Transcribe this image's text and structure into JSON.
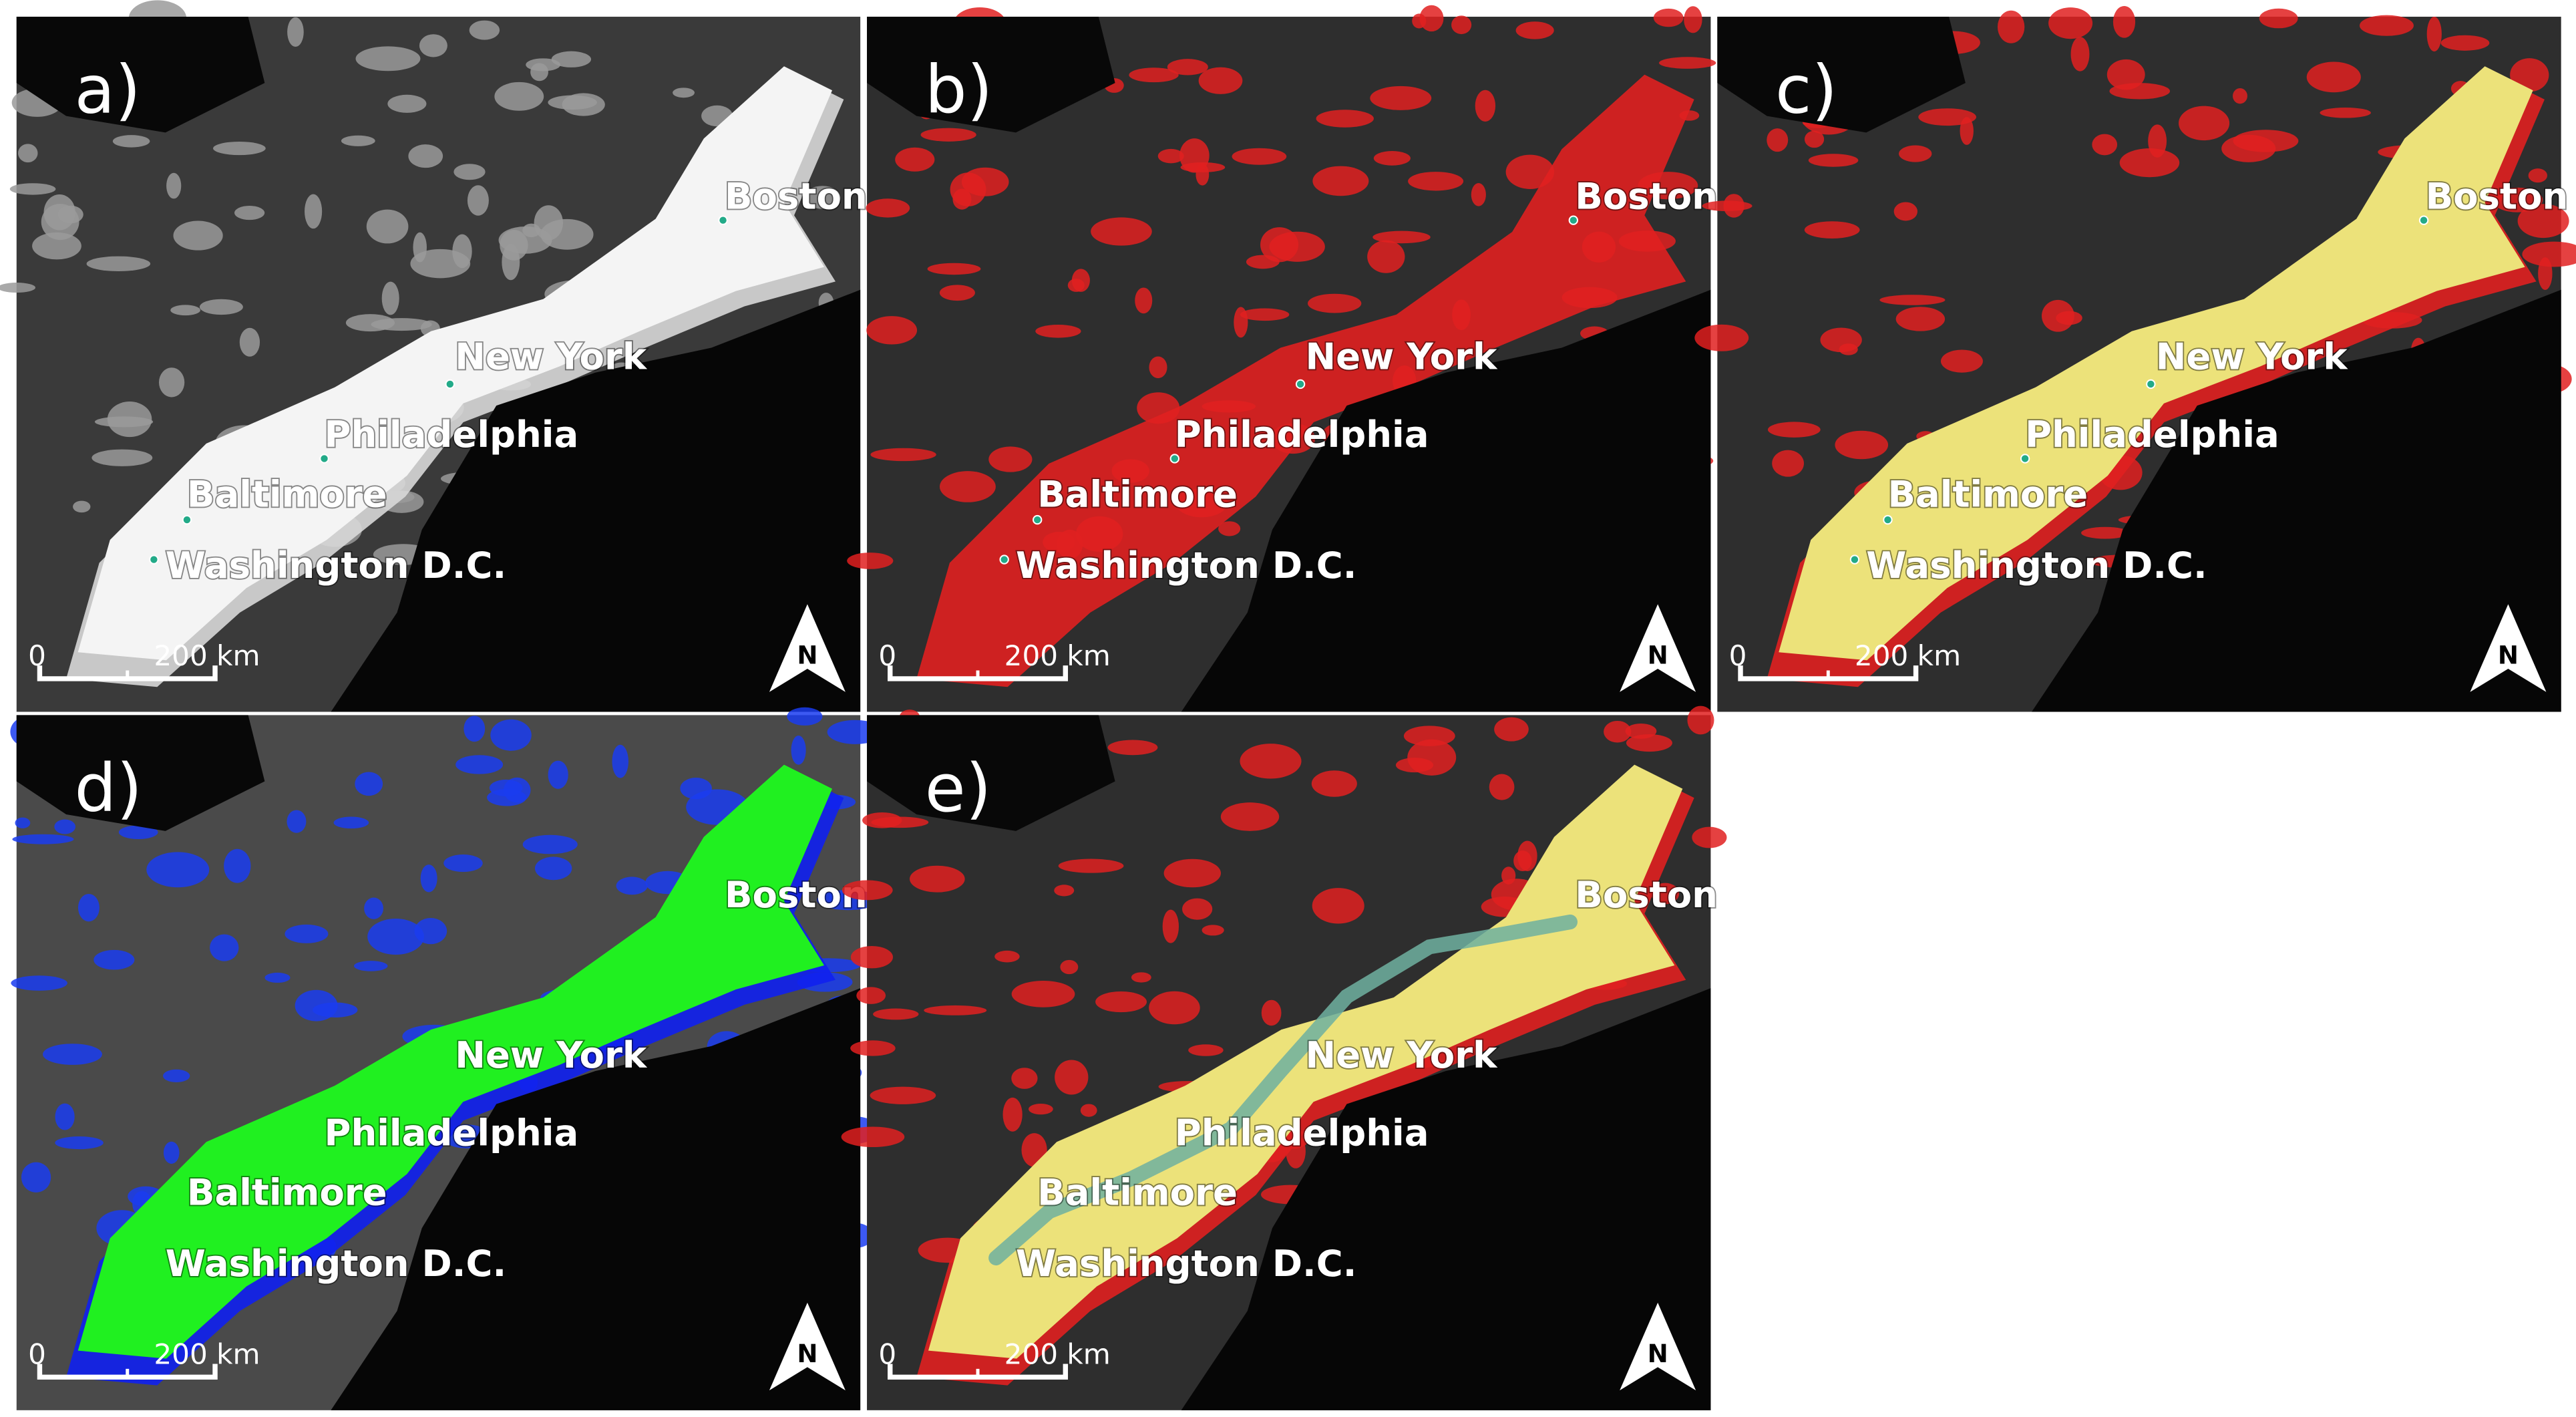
{
  "panels": [
    {
      "label": "a)"
    },
    {
      "label": "b)"
    },
    {
      "label": "c)"
    },
    {
      "label": "d)"
    },
    {
      "label": "e)"
    }
  ],
  "cities": [
    "Boston",
    "New York",
    "Philadelphia",
    "Baltimore",
    "Washington D.C."
  ],
  "scale_labels": [
    "0",
    "200 km"
  ],
  "north": "N"
}
